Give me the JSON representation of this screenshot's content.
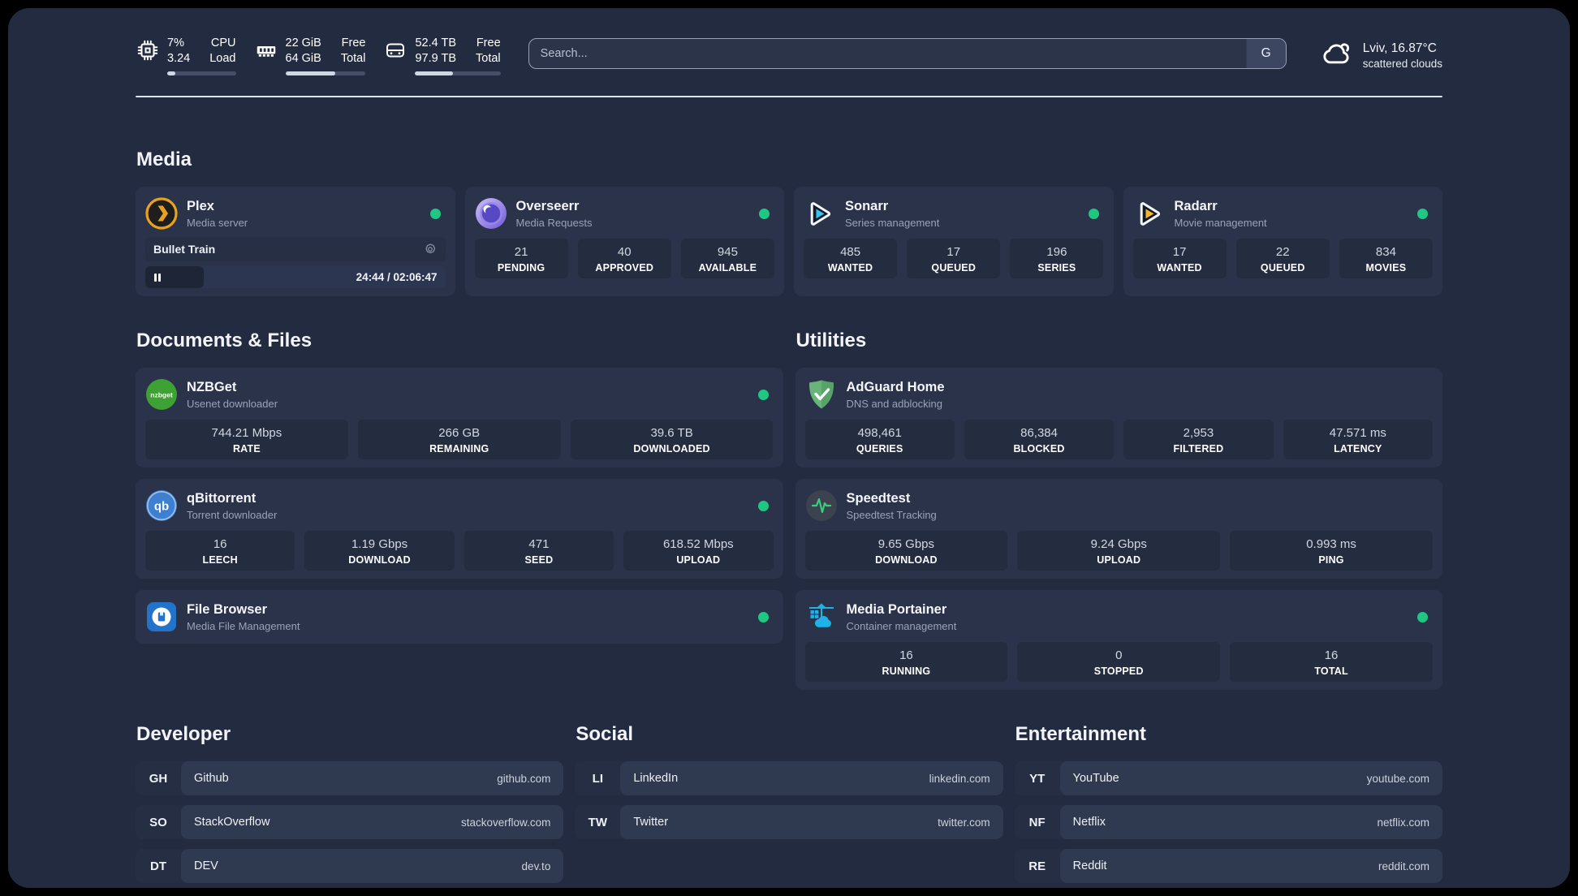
{
  "colors": {
    "panel_bg": "#232b40",
    "card_bg": "#2a3349",
    "stat_bg": "#242c40",
    "status_online": "#1fc783",
    "divider": "#dde2ec"
  },
  "header": {
    "system_stats": [
      {
        "icon": "cpu-icon",
        "values": [
          "7%",
          "3.24"
        ],
        "labels": [
          "CPU",
          "Load"
        ],
        "progress_pct": 12
      },
      {
        "icon": "ram-icon",
        "values": [
          "22 GiB",
          "64 GiB"
        ],
        "labels": [
          "Free",
          "Total"
        ],
        "progress_pct": 62
      },
      {
        "icon": "disk-icon",
        "values": [
          "52.4 TB",
          "97.9 TB"
        ],
        "labels": [
          "Free",
          "Total"
        ],
        "progress_pct": 44
      }
    ],
    "search": {
      "placeholder": "Search...",
      "engine_label": "G"
    },
    "weather": {
      "icon": "clouds-icon",
      "location": "Lviv, 16.87°C",
      "condition": "scattered clouds"
    }
  },
  "sections": {
    "media": {
      "title": "Media",
      "apps": [
        {
          "name": "Plex",
          "description": "Media server",
          "icon": "plex-icon",
          "online": true,
          "now_playing": {
            "title": "Bullet Train",
            "time_display": "24:44 / 02:06:47",
            "progress_pct": 19.5
          }
        },
        {
          "name": "Overseerr",
          "description": "Media Requests",
          "icon": "overseerr-icon",
          "online": true,
          "stats": [
            {
              "value": "21",
              "label": "PENDING"
            },
            {
              "value": "40",
              "label": "APPROVED"
            },
            {
              "value": "945",
              "label": "AVAILABLE"
            }
          ]
        },
        {
          "name": "Sonarr",
          "description": "Series management",
          "icon": "sonarr-icon",
          "online": true,
          "stats": [
            {
              "value": "485",
              "label": "WANTED"
            },
            {
              "value": "17",
              "label": "QUEUED"
            },
            {
              "value": "196",
              "label": "SERIES"
            }
          ]
        },
        {
          "name": "Radarr",
          "description": "Movie management",
          "icon": "radarr-icon",
          "online": true,
          "stats": [
            {
              "value": "17",
              "label": "WANTED"
            },
            {
              "value": "22",
              "label": "QUEUED"
            },
            {
              "value": "834",
              "label": "MOVIES"
            }
          ]
        }
      ]
    },
    "documents": {
      "title": "Documents & Files",
      "apps": [
        {
          "name": "NZBGet",
          "description": "Usenet downloader",
          "icon": "nzbget-icon",
          "online": true,
          "stats": [
            {
              "value": "744.21 Mbps",
              "label": "RATE"
            },
            {
              "value": "266 GB",
              "label": "REMAINING"
            },
            {
              "value": "39.6 TB",
              "label": "DOWNLOADED"
            }
          ]
        },
        {
          "name": "qBittorrent",
          "description": "Torrent downloader",
          "icon": "qbittorrent-icon",
          "online": true,
          "stats": [
            {
              "value": "16",
              "label": "LEECH"
            },
            {
              "value": "1.19 Gbps",
              "label": "DOWNLOAD"
            },
            {
              "value": "471",
              "label": "SEED"
            },
            {
              "value": "618.52 Mbps",
              "label": "UPLOAD"
            }
          ]
        },
        {
          "name": "File Browser",
          "description": "Media File Management",
          "icon": "filebrowser-icon",
          "online": true
        }
      ]
    },
    "utilities": {
      "title": "Utilities",
      "apps": [
        {
          "name": "AdGuard Home",
          "description": "DNS and adblocking",
          "icon": "adguard-icon",
          "online": false,
          "stats": [
            {
              "value": "498,461",
              "label": "QUERIES"
            },
            {
              "value": "86,384",
              "label": "BLOCKED"
            },
            {
              "value": "2,953",
              "label": "FILTERED"
            },
            {
              "value": "47.571 ms",
              "label": "LATENCY"
            }
          ]
        },
        {
          "name": "Speedtest",
          "description": "Speedtest Tracking",
          "icon": "speedtest-icon",
          "online": false,
          "stats": [
            {
              "value": "9.65 Gbps",
              "label": "DOWNLOAD"
            },
            {
              "value": "9.24 Gbps",
              "label": "UPLOAD"
            },
            {
              "value": "0.993 ms",
              "label": "PING"
            }
          ]
        },
        {
          "name": "Media Portainer",
          "description": "Container management",
          "icon": "portainer-icon",
          "online": true,
          "stats": [
            {
              "value": "16",
              "label": "RUNNING"
            },
            {
              "value": "0",
              "label": "STOPPED"
            },
            {
              "value": "16",
              "label": "TOTAL"
            }
          ]
        }
      ]
    },
    "bookmarks": [
      {
        "title": "Developer",
        "items": [
          {
            "abbr": "GH",
            "name": "Github",
            "url": "github.com"
          },
          {
            "abbr": "SO",
            "name": "StackOverflow",
            "url": "stackoverflow.com"
          },
          {
            "abbr": "DT",
            "name": "DEV",
            "url": "dev.to"
          }
        ]
      },
      {
        "title": "Social",
        "items": [
          {
            "abbr": "LI",
            "name": "LinkedIn",
            "url": "linkedin.com"
          },
          {
            "abbr": "TW",
            "name": "Twitter",
            "url": "twitter.com"
          }
        ]
      },
      {
        "title": "Entertainment",
        "items": [
          {
            "abbr": "YT",
            "name": "YouTube",
            "url": "youtube.com"
          },
          {
            "abbr": "NF",
            "name": "Netflix",
            "url": "netflix.com"
          },
          {
            "abbr": "RE",
            "name": "Reddit",
            "url": "reddit.com"
          }
        ]
      }
    ]
  }
}
